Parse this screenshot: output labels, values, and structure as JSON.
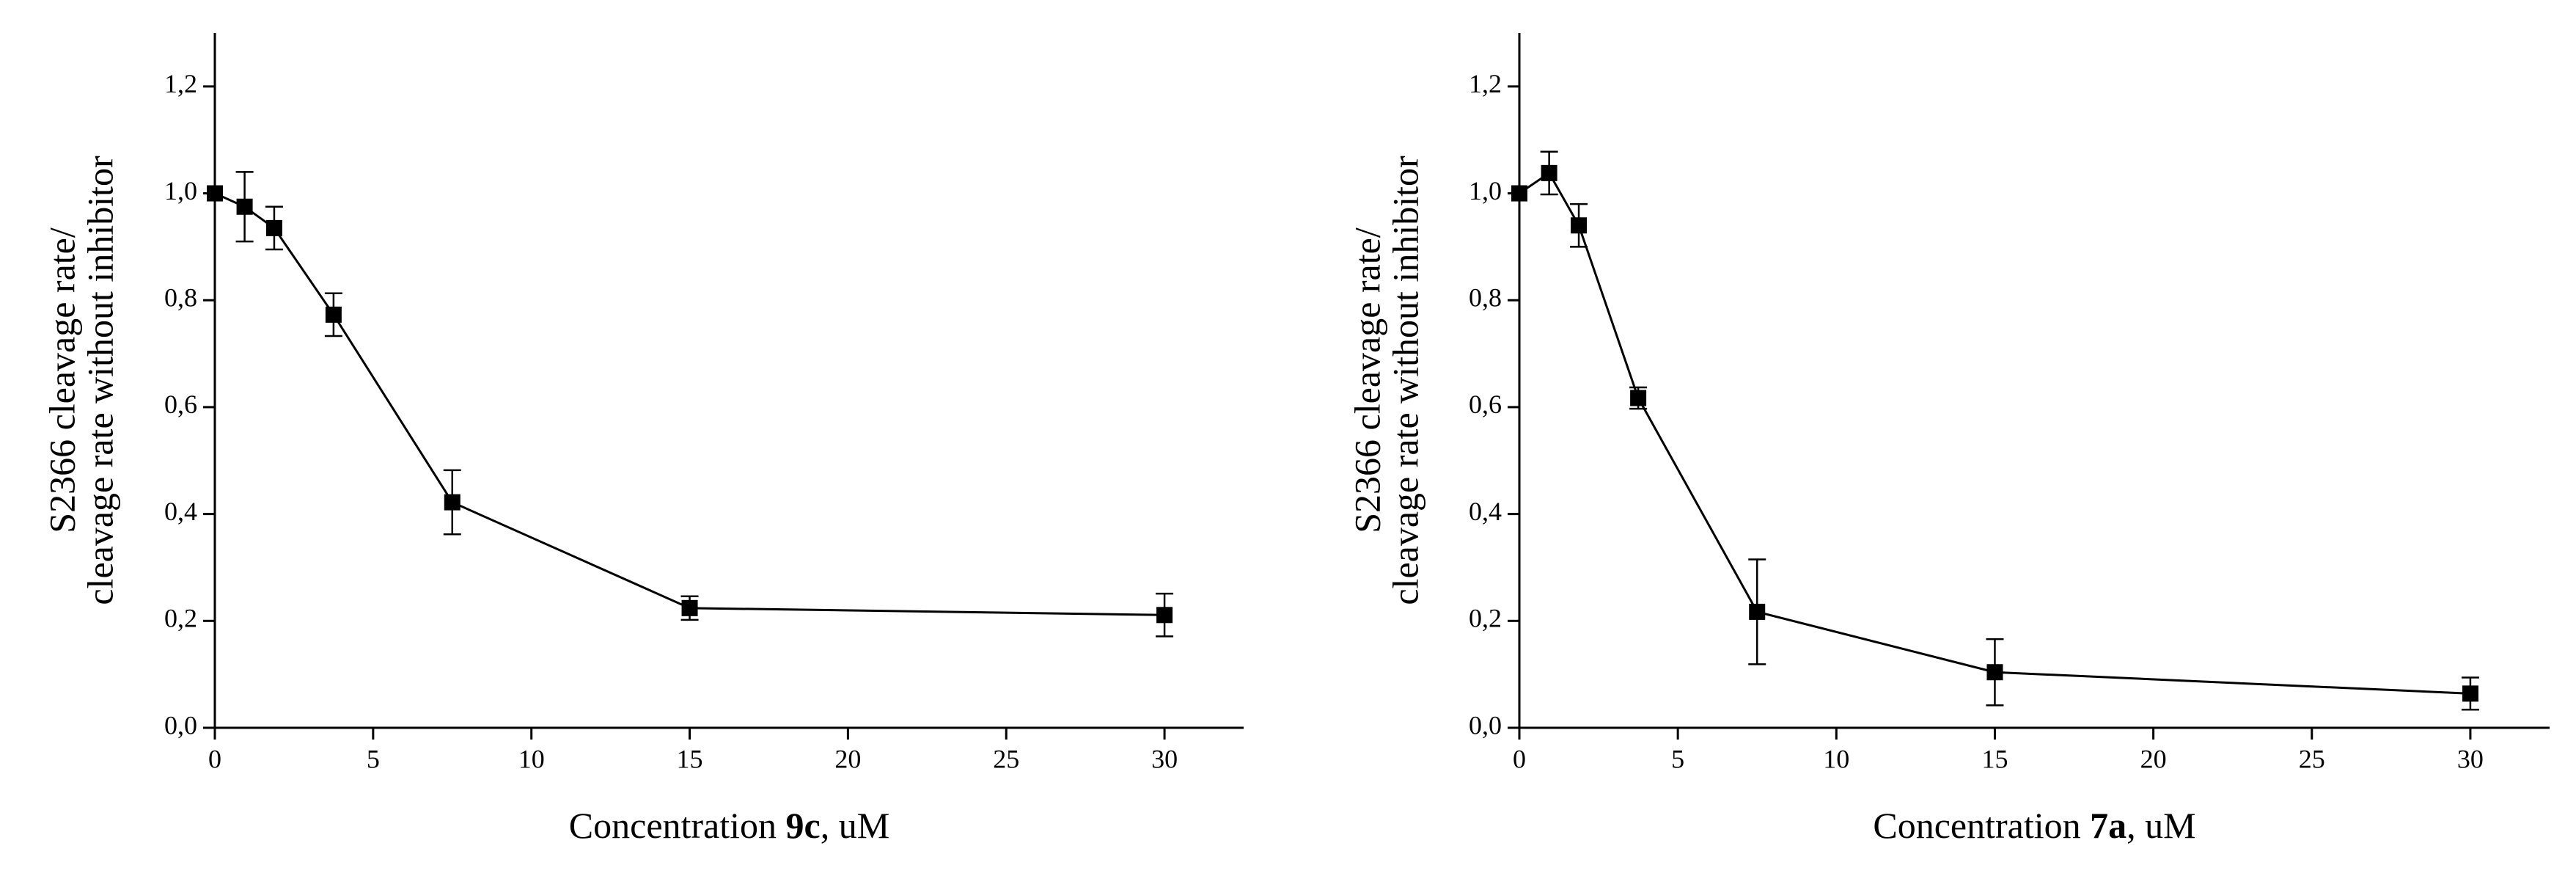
{
  "chart_data": [
    {
      "type": "line",
      "xlabel": [
        "Concentration",
        "9c",
        ", uM"
      ],
      "ylabel": [
        "S2366 cleavage rate/",
        "cleavage rate without inhibitor"
      ],
      "xlim": [
        0,
        32.5
      ],
      "xticks": [
        0,
        5,
        10,
        15,
        20,
        25,
        30
      ],
      "ylim": [
        0,
        1.3
      ],
      "yticks": [
        {
          "value": 0,
          "label": "0,0"
        },
        {
          "value": 0.2,
          "label": "0,2"
        },
        {
          "value": 0.4,
          "label": "0,4"
        },
        {
          "value": 0.6,
          "label": "0,6"
        },
        {
          "value": 0.8,
          "label": "0,8"
        },
        {
          "value": 1.0,
          "label": "1,0"
        },
        {
          "value": 1.2,
          "label": "1,2"
        }
      ],
      "series": [
        {
          "color": "#000000",
          "x": [
            0,
            0.94,
            1.875,
            3.75,
            7.5,
            15,
            30
          ],
          "values": [
            1.0,
            0.975,
            0.935,
            0.773,
            0.422,
            0.224,
            0.211
          ],
          "errors": [
            null,
            0.065,
            0.04,
            0.04,
            0.06,
            0.022,
            0.04
          ]
        }
      ]
    },
    {
      "type": "line",
      "xlabel": [
        "Concentration",
        "7a",
        ", uM"
      ],
      "ylabel": [
        "S2366 cleavage rate/",
        "cleavage rate without inhibitor"
      ],
      "xlim": [
        0,
        32.5
      ],
      "xticks": [
        0,
        5,
        10,
        15,
        20,
        25,
        30
      ],
      "ylim": [
        0,
        1.3
      ],
      "yticks": [
        {
          "value": 0,
          "label": "0,0"
        },
        {
          "value": 0.2,
          "label": "0,2"
        },
        {
          "value": 0.4,
          "label": "0,4"
        },
        {
          "value": 0.6,
          "label": "0,6"
        },
        {
          "value": 0.8,
          "label": "0,8"
        },
        {
          "value": 1.0,
          "label": "1,0"
        },
        {
          "value": 1.2,
          "label": "1,2"
        }
      ],
      "series": [
        {
          "color": "#000000",
          "x": [
            0,
            0.94,
            1.875,
            3.75,
            7.5,
            15,
            30
          ],
          "values": [
            1.0,
            1.038,
            0.94,
            0.617,
            0.217,
            0.104,
            0.064
          ],
          "errors": [
            null,
            0.04,
            0.04,
            0.02,
            0.098,
            0.062,
            0.03
          ]
        }
      ]
    }
  ]
}
